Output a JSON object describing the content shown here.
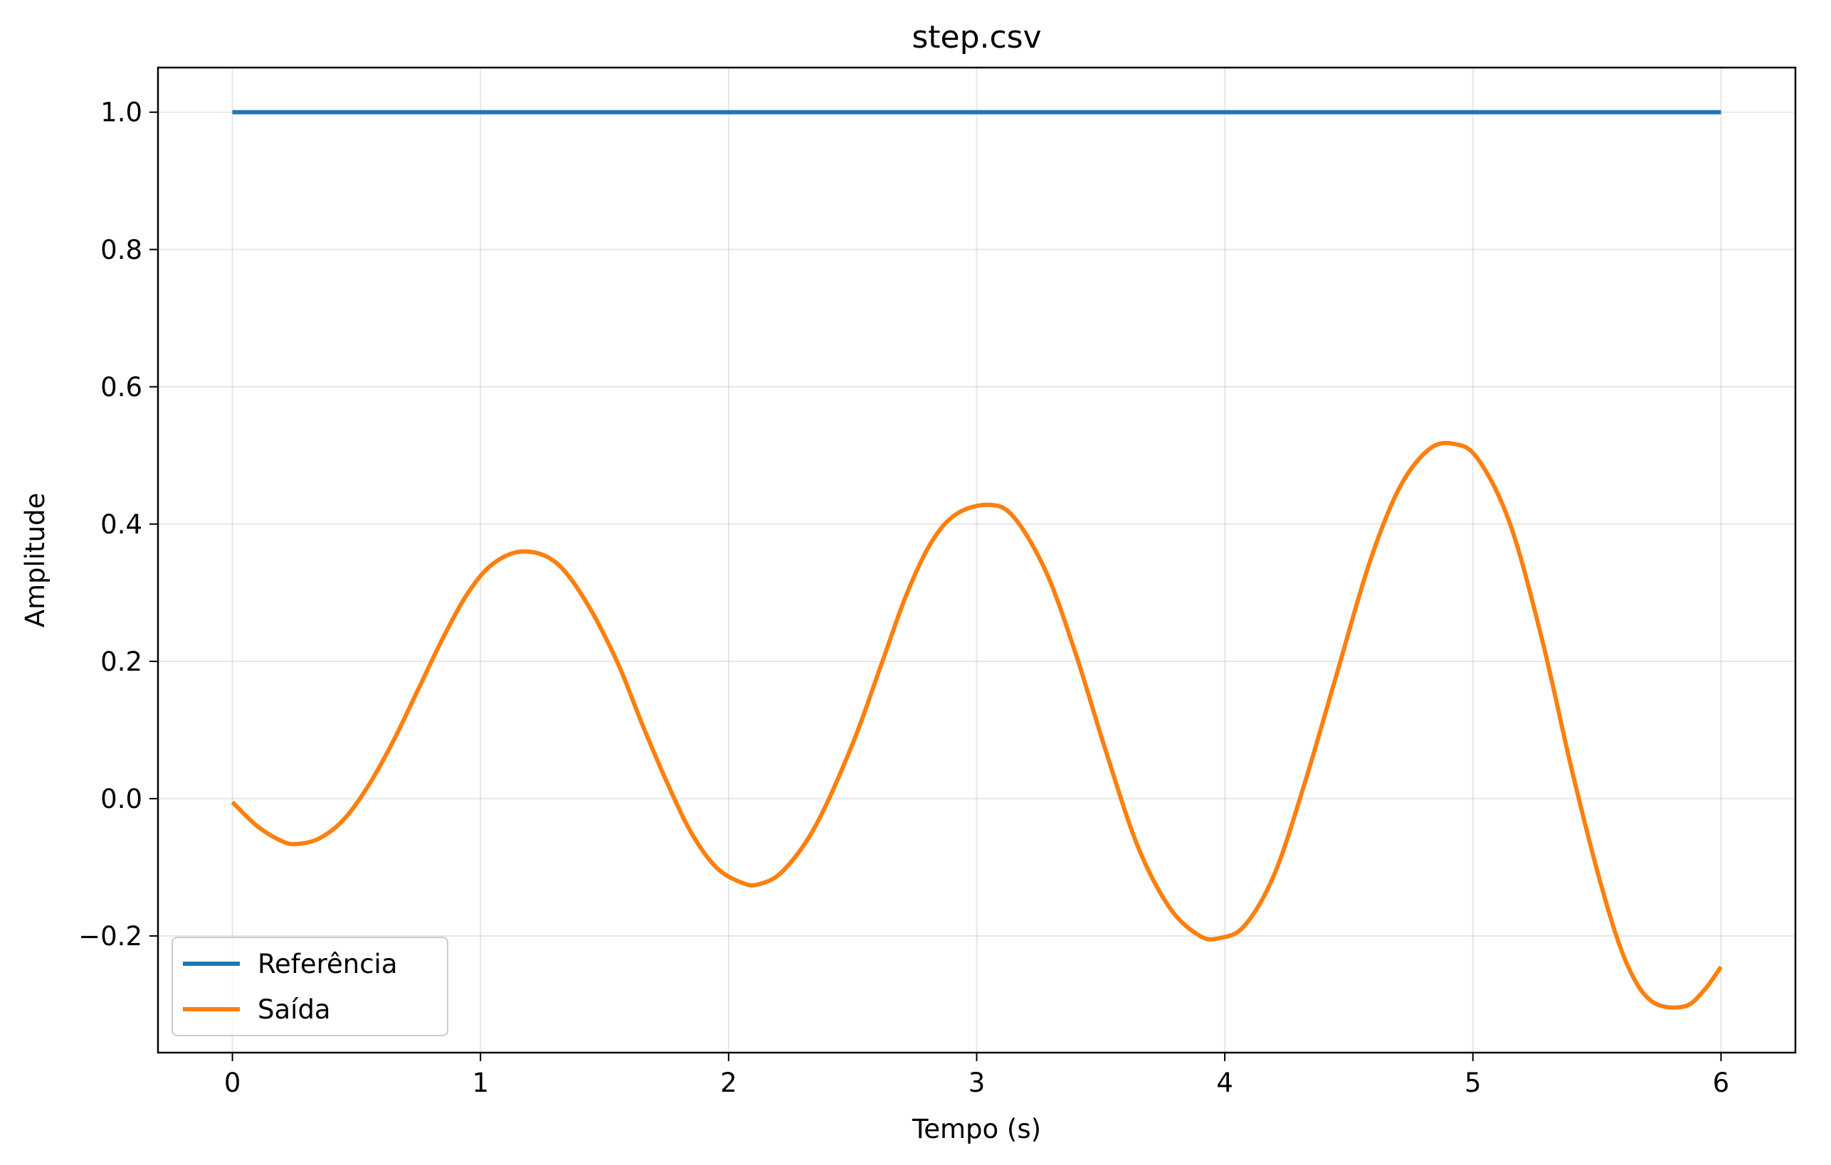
{
  "chart_data": {
    "type": "line",
    "title": "step.csv",
    "xlabel": "Tempo (s)",
    "ylabel": "Amplitude",
    "xlim": [
      -0.3,
      6.3
    ],
    "ylim": [
      -0.37,
      1.065
    ],
    "xticks": [
      0,
      1,
      2,
      3,
      4,
      5,
      6
    ],
    "xtick_labels": [
      "0",
      "1",
      "2",
      "3",
      "4",
      "5",
      "6"
    ],
    "yticks": [
      -0.2,
      0.0,
      0.2,
      0.4,
      0.6,
      0.8,
      1.0
    ],
    "ytick_labels": [
      "−0.2",
      "0.0",
      "0.2",
      "0.4",
      "0.6",
      "0.8",
      "1.0"
    ],
    "grid": true,
    "legend_position": "lower-left",
    "series": [
      {
        "name": "Referência",
        "color": "#1f77b4",
        "points": [
          [
            0,
            1.0
          ],
          [
            6,
            1.0
          ]
        ]
      },
      {
        "name": "Saída",
        "color": "#ff7f0e",
        "points": [
          [
            0.0,
            -0.005
          ],
          [
            0.1,
            -0.04
          ],
          [
            0.2,
            -0.062
          ],
          [
            0.26,
            -0.066
          ],
          [
            0.35,
            -0.058
          ],
          [
            0.45,
            -0.03
          ],
          [
            0.55,
            0.02
          ],
          [
            0.65,
            0.085
          ],
          [
            0.75,
            0.16
          ],
          [
            0.85,
            0.235
          ],
          [
            0.95,
            0.3
          ],
          [
            1.05,
            0.342
          ],
          [
            1.17,
            0.36
          ],
          [
            1.3,
            0.345
          ],
          [
            1.42,
            0.29
          ],
          [
            1.55,
            0.2
          ],
          [
            1.65,
            0.11
          ],
          [
            1.75,
            0.025
          ],
          [
            1.85,
            -0.05
          ],
          [
            1.95,
            -0.1
          ],
          [
            2.05,
            -0.122
          ],
          [
            2.12,
            -0.125
          ],
          [
            2.22,
            -0.105
          ],
          [
            2.35,
            -0.04
          ],
          [
            2.5,
            0.08
          ],
          [
            2.62,
            0.2
          ],
          [
            2.72,
            0.3
          ],
          [
            2.82,
            0.375
          ],
          [
            2.92,
            0.415
          ],
          [
            3.05,
            0.428
          ],
          [
            3.15,
            0.41
          ],
          [
            3.28,
            0.33
          ],
          [
            3.4,
            0.21
          ],
          [
            3.52,
            0.07
          ],
          [
            3.65,
            -0.07
          ],
          [
            3.78,
            -0.16
          ],
          [
            3.9,
            -0.2
          ],
          [
            3.98,
            -0.203
          ],
          [
            4.08,
            -0.185
          ],
          [
            4.2,
            -0.11
          ],
          [
            4.32,
            0.02
          ],
          [
            4.45,
            0.18
          ],
          [
            4.58,
            0.34
          ],
          [
            4.7,
            0.45
          ],
          [
            4.82,
            0.508
          ],
          [
            4.92,
            0.517
          ],
          [
            5.02,
            0.495
          ],
          [
            5.15,
            0.4
          ],
          [
            5.28,
            0.23
          ],
          [
            5.4,
            0.04
          ],
          [
            5.52,
            -0.13
          ],
          [
            5.62,
            -0.24
          ],
          [
            5.72,
            -0.295
          ],
          [
            5.85,
            -0.303
          ],
          [
            5.93,
            -0.28
          ],
          [
            6.0,
            -0.245
          ]
        ]
      }
    ]
  }
}
